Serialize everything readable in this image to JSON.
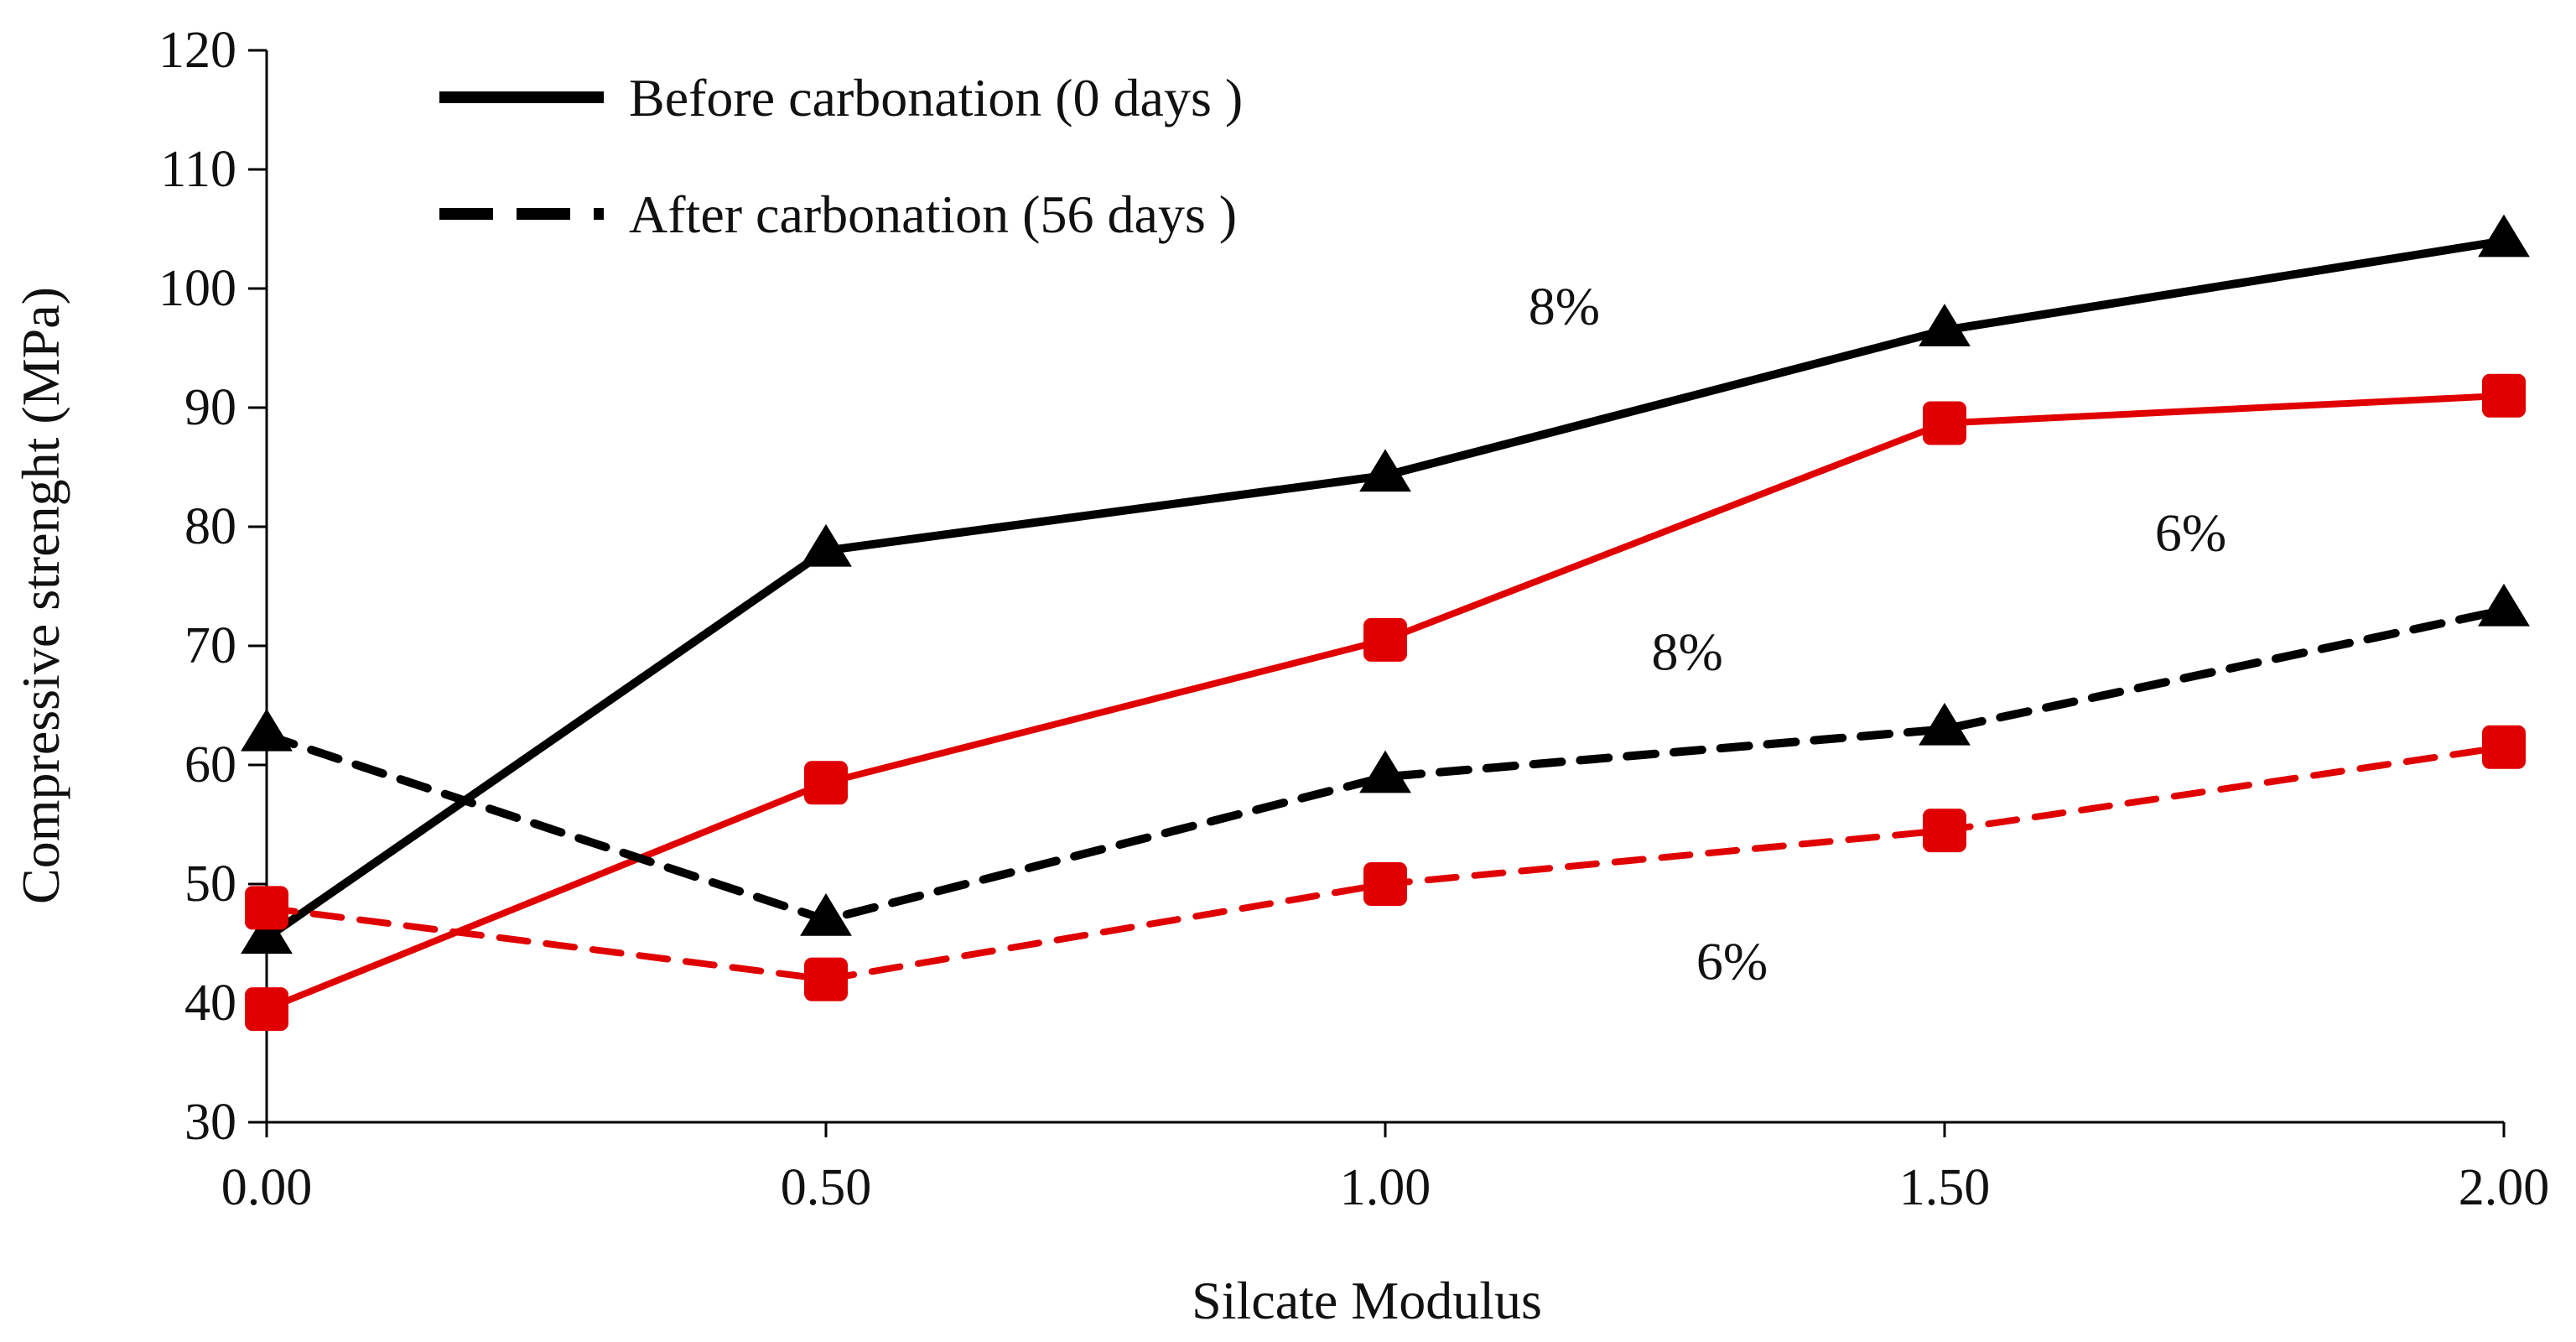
{
  "chart_data": {
    "type": "line",
    "title": "",
    "xlabel": "Silcate Modulus",
    "ylabel": "Compressive strenght (MPa)",
    "x": [
      0.0,
      0.5,
      1.0,
      1.5,
      2.0
    ],
    "x_tick_labels": [
      "0.00",
      "0.50",
      "1.00",
      "1.50",
      "2.00"
    ],
    "xlim": [
      0,
      2
    ],
    "ylim": [
      30,
      120
    ],
    "y_ticks": [
      30,
      40,
      50,
      60,
      70,
      80,
      90,
      100,
      110,
      120
    ],
    "grid": false,
    "legend": {
      "placement": "top-left",
      "items": [
        {
          "label": "Before carbonation (0 days )",
          "style": "solid",
          "color": "#000000"
        },
        {
          "label": "After carbonation (56 days )",
          "style": "dashed",
          "color": "#000000"
        }
      ]
    },
    "annotations": [
      {
        "text": "8%",
        "x": 1.16,
        "y": 97.0
      },
      {
        "text": "6%",
        "x": 1.72,
        "y": 78.0
      },
      {
        "text": "8%",
        "x": 1.27,
        "y": 68.0
      },
      {
        "text": "6%",
        "x": 1.31,
        "y": 42.0
      }
    ],
    "series": [
      {
        "name": "8% before carbonation (0 days)",
        "color": "#000000",
        "line_style": "solid",
        "marker": "triangle",
        "values": [
          45.5,
          78.0,
          84.3,
          96.5,
          104.0
        ]
      },
      {
        "name": "6% before carbonation (0 days)",
        "color": "#e00000",
        "line_style": "solid",
        "marker": "square",
        "values": [
          39.5,
          58.5,
          70.5,
          88.7,
          91.0
        ]
      },
      {
        "name": "8% after carbonation (56 days)",
        "color": "#000000",
        "line_style": "dashed",
        "marker": "triangle",
        "values": [
          62.5,
          47.0,
          59.0,
          63.0,
          73.0
        ]
      },
      {
        "name": "6% after carbonation (56 days)",
        "color": "#e00000",
        "line_style": "dashed",
        "marker": "square",
        "values": [
          48.0,
          42.0,
          50.0,
          54.5,
          61.5
        ]
      }
    ]
  }
}
